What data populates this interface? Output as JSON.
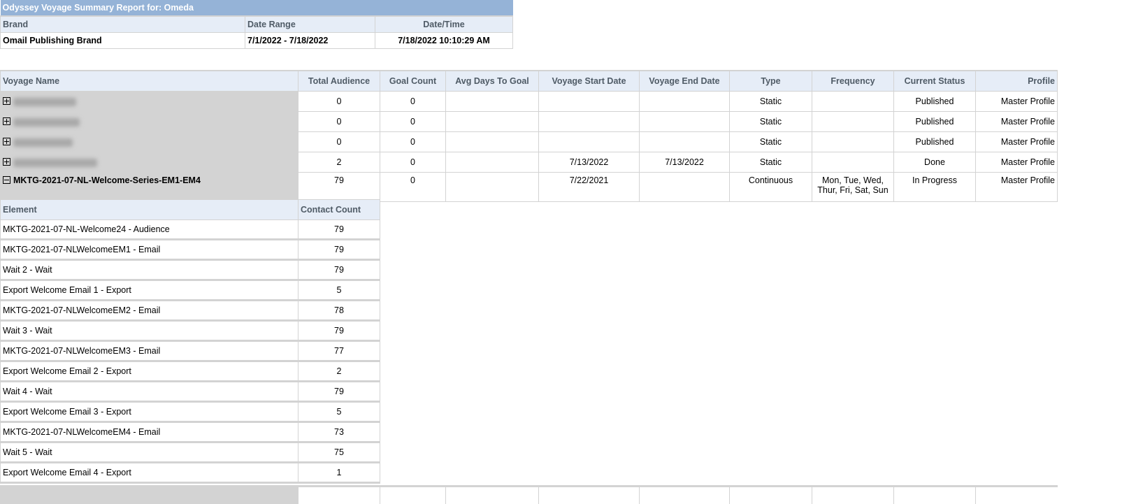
{
  "report": {
    "title": "Odyssey Voyage Summary Report for:  Omeda",
    "headers": {
      "brand": "Brand",
      "date_range": "Date Range",
      "date_time": "Date/Time"
    },
    "values": {
      "brand": "Omail Publishing Brand",
      "date_range": "7/1/2022 - 7/18/2022",
      "date_time": "7/18/2022 10:10:29 AM"
    }
  },
  "voyages": {
    "columns": [
      "Voyage Name",
      "Total Audience",
      "Goal Count",
      "Avg Days To Goal",
      "Voyage Start Date",
      "Voyage End Date",
      "Type",
      "Frequency",
      "Current Status",
      "Profile"
    ],
    "rows": [
      {
        "name": "",
        "expanded": false,
        "audience": "0",
        "goal": "0",
        "avg": "",
        "start": "",
        "end": "",
        "type": "Static",
        "freq": "",
        "status": "Published",
        "profile": "Master Profile"
      },
      {
        "name": "",
        "expanded": false,
        "audience": "0",
        "goal": "0",
        "avg": "",
        "start": "",
        "end": "",
        "type": "Static",
        "freq": "",
        "status": "Published",
        "profile": "Master Profile"
      },
      {
        "name": "",
        "expanded": false,
        "audience": "0",
        "goal": "0",
        "avg": "",
        "start": "",
        "end": "",
        "type": "Static",
        "freq": "",
        "status": "Published",
        "profile": "Master Profile"
      },
      {
        "name": "",
        "expanded": false,
        "audience": "2",
        "goal": "0",
        "avg": "",
        "start": "7/13/2022",
        "end": "7/13/2022",
        "type": "Static",
        "freq": "",
        "status": "Done",
        "profile": "Master Profile"
      },
      {
        "name": "MKTG-2021-07-NL-Welcome-Series-EM1-EM4",
        "expanded": true,
        "audience": "79",
        "goal": "0",
        "avg": "",
        "start": "7/22/2021",
        "end": "",
        "type": "Continuous",
        "freq": "Mon, Tue, Wed, Thur, Fri, Sat, Sun",
        "status": "In Progress",
        "profile": "Master Profile"
      }
    ]
  },
  "elements": {
    "columns": [
      "Element",
      "Contact Count"
    ],
    "rows": [
      [
        "MKTG-2021-07-NL-Welcome24 - Audience",
        "79"
      ],
      [
        "MKTG-2021-07-NLWelcomeEM1 - Email",
        "79"
      ],
      [
        "Wait 2 - Wait",
        "79"
      ],
      [
        "Export Welcome Email 1 - Export",
        "5"
      ],
      [
        "MKTG-2021-07-NLWelcomeEM2 - Email",
        "78"
      ],
      [
        "Wait 3 - Wait",
        "79"
      ],
      [
        "MKTG-2021-07-NLWelcomeEM3 - Email",
        "77"
      ],
      [
        "Export Welcome Email 2 - Export",
        "2"
      ],
      [
        "Wait 4 - Wait",
        "79"
      ],
      [
        "Export Welcome Email 3 - Export",
        "5"
      ],
      [
        "MKTG-2021-07-NLWelcomeEM4 - Email",
        "73"
      ],
      [
        "Wait 5 - Wait",
        "75"
      ],
      [
        "Export Welcome Email 4 - Export",
        "1"
      ]
    ]
  },
  "colors": {
    "title_bar": "#95b3d7",
    "header_bg": "#e6edf7",
    "name_cell_bg": "#d3d3d3"
  }
}
